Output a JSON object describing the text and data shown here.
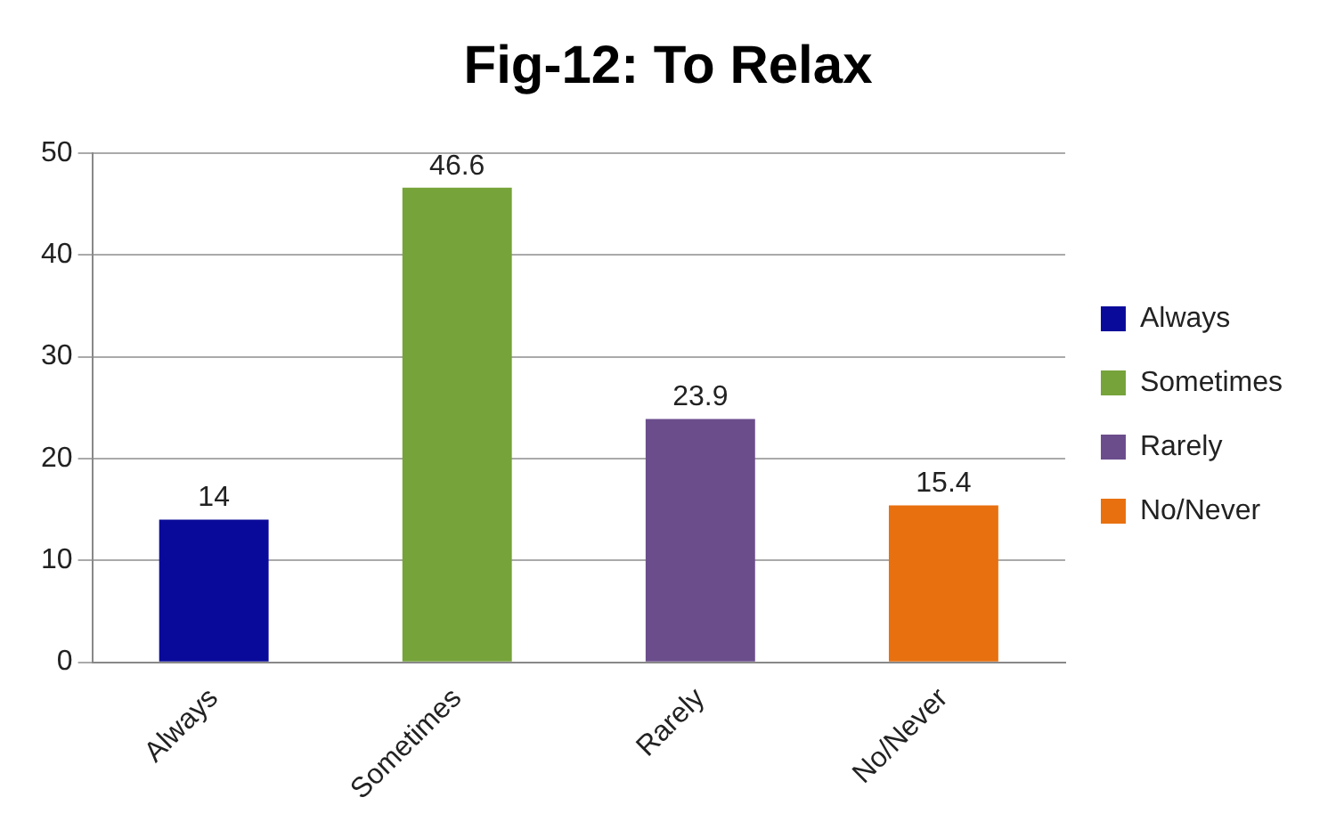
{
  "chart_data": {
    "type": "bar",
    "title": "Fig-12: To Relax",
    "categories": [
      "Always",
      "Sometimes",
      "Rarely",
      "No/Never"
    ],
    "series": [
      {
        "name": "Always",
        "color": "#0a0a9a",
        "values": [
          14,
          null,
          null,
          null
        ]
      },
      {
        "name": "Sometimes",
        "color": "#76a33a",
        "values": [
          null,
          46.6,
          null,
          null
        ]
      },
      {
        "name": "Rarely",
        "color": "#6b4d8c",
        "values": [
          null,
          null,
          23.9,
          null
        ]
      },
      {
        "name": "No/Never",
        "color": "#e8700f",
        "values": [
          null,
          null,
          null,
          15.4
        ]
      }
    ],
    "ylim": [
      0,
      50
    ],
    "yticks": [
      0,
      10,
      20,
      30,
      40,
      50
    ],
    "grid": "y",
    "legend": "right",
    "data_labels": true
  }
}
